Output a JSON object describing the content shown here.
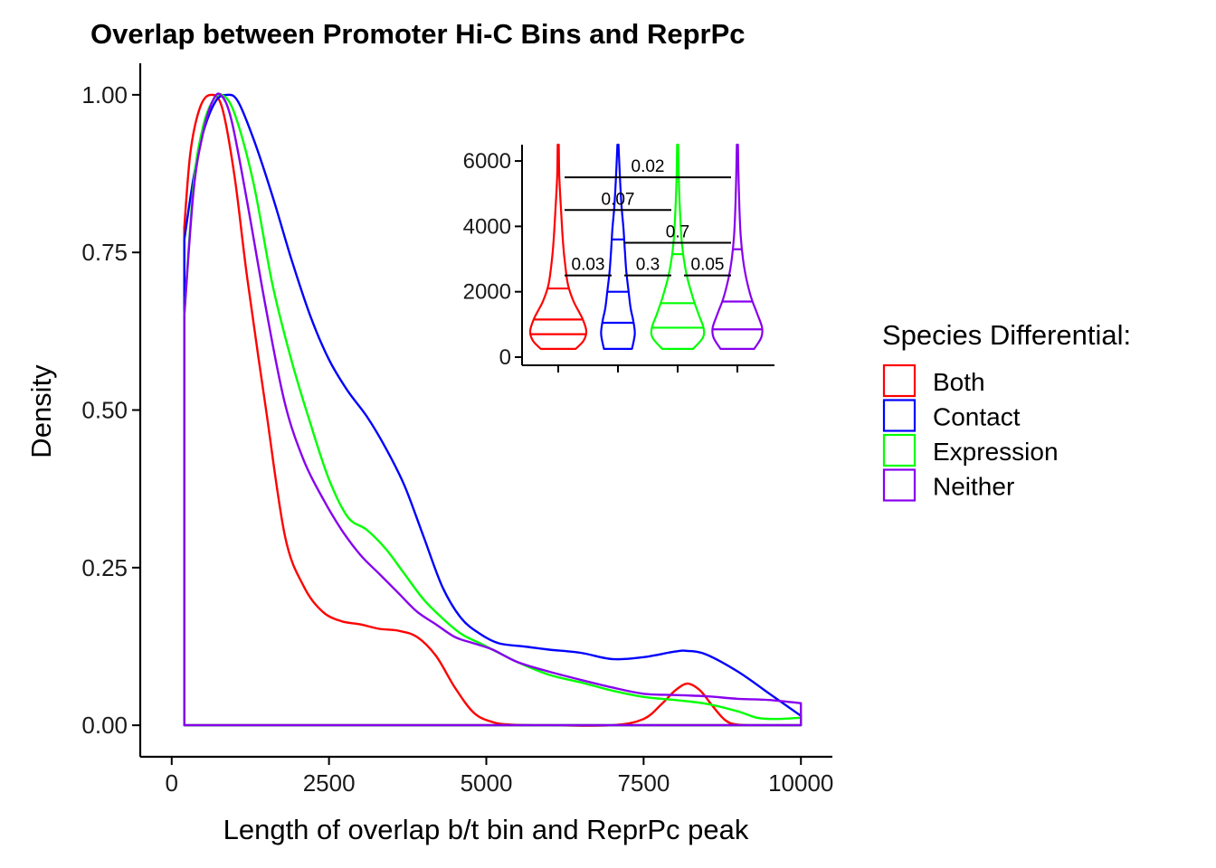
{
  "chart_data": [
    {
      "type": "density",
      "title": "Overlap between Promoter Hi-C Bins and ReprPc",
      "xlabel": "Length of overlap b/t bin and ReprPc peak",
      "ylabel": "Density",
      "xlim": [
        -500,
        10500
      ],
      "ylim": [
        -0.05,
        1.05
      ],
      "x_ticks": [
        "0",
        "2500",
        "5000",
        "7500",
        "10000"
      ],
      "y_ticks": [
        "0.00",
        "0.25",
        "0.50",
        "0.75",
        "1.00"
      ],
      "legend": {
        "title": "Species Differential:",
        "position": "right",
        "items": [
          "Both",
          "Contact",
          "Expression",
          "Neither"
        ]
      },
      "series": [
        {
          "name": "Both",
          "color": "#FF0000",
          "x": [
            200,
            300,
            450,
            620,
            800,
            1000,
            1200,
            1500,
            1800,
            2100,
            2400,
            2700,
            3000,
            3300,
            3600,
            3900,
            4200,
            4500,
            4800,
            5100,
            5400,
            6000,
            7000,
            7500,
            7800,
            8000,
            8200,
            8400,
            8600,
            8800,
            9000,
            9500,
            10000
          ],
          "y": [
            0.79,
            0.91,
            0.98,
            1.0,
            0.98,
            0.87,
            0.71,
            0.5,
            0.3,
            0.22,
            0.18,
            0.165,
            0.16,
            0.153,
            0.15,
            0.14,
            0.11,
            0.06,
            0.02,
            0.005,
            0.001,
            0.0,
            0.0,
            0.01,
            0.035,
            0.055,
            0.066,
            0.055,
            0.03,
            0.008,
            0.001,
            0.0,
            0.0
          ]
        },
        {
          "name": "Contact",
          "color": "#0000FF",
          "x": [
            200,
            350,
            500,
            700,
            880,
            1050,
            1300,
            1600,
            1900,
            2200,
            2500,
            2800,
            3100,
            3400,
            3700,
            4000,
            4300,
            4600,
            4900,
            5200,
            5600,
            6000,
            6500,
            7000,
            7500,
            8000,
            8200,
            8500,
            9000,
            9500,
            10000
          ],
          "y": [
            0.77,
            0.87,
            0.94,
            0.99,
            1.0,
            0.99,
            0.93,
            0.84,
            0.74,
            0.65,
            0.58,
            0.53,
            0.49,
            0.44,
            0.38,
            0.3,
            0.22,
            0.17,
            0.145,
            0.13,
            0.125,
            0.12,
            0.115,
            0.105,
            0.108,
            0.117,
            0.118,
            0.112,
            0.085,
            0.05,
            0.015
          ]
        },
        {
          "name": "Expression",
          "color": "#00FF00",
          "x": [
            200,
            350,
            500,
            650,
            800,
            1000,
            1300,
            1600,
            1900,
            2200,
            2500,
            2800,
            3100,
            3400,
            3700,
            4000,
            4300,
            4600,
            4900,
            5200,
            5500,
            6000,
            6500,
            7000,
            7500,
            8000,
            8500,
            9000,
            9300,
            9600,
            10000
          ],
          "y": [
            0.65,
            0.86,
            0.95,
            0.99,
            1.0,
            0.97,
            0.86,
            0.7,
            0.58,
            0.48,
            0.39,
            0.33,
            0.31,
            0.28,
            0.24,
            0.2,
            0.17,
            0.145,
            0.13,
            0.115,
            0.1,
            0.08,
            0.068,
            0.055,
            0.045,
            0.04,
            0.034,
            0.022,
            0.012,
            0.01,
            0.012
          ]
        },
        {
          "name": "Neither",
          "color": "#8800EE",
          "x": [
            200,
            350,
            500,
            650,
            780,
            950,
            1200,
            1500,
            1800,
            2100,
            2400,
            2700,
            3000,
            3300,
            3600,
            3900,
            4200,
            4500,
            4800,
            5100,
            5500,
            6000,
            6500,
            7000,
            7500,
            8000,
            8500,
            9000,
            9500,
            10000
          ],
          "y": [
            0.65,
            0.85,
            0.94,
            0.99,
            1.0,
            0.96,
            0.83,
            0.66,
            0.51,
            0.42,
            0.36,
            0.31,
            0.27,
            0.24,
            0.21,
            0.18,
            0.16,
            0.14,
            0.13,
            0.12,
            0.1,
            0.085,
            0.072,
            0.06,
            0.05,
            0.048,
            0.046,
            0.042,
            0.04,
            0.035
          ]
        }
      ]
    },
    {
      "type": "violin",
      "ylim": [
        -250,
        6500
      ],
      "y_ticks": [
        "0",
        "2000",
        "4000",
        "6000"
      ],
      "groups": [
        {
          "name": "Both",
          "color": "#FF0000",
          "min": 250,
          "max": 6500,
          "quantiles": [
            700,
            1150,
            2100
          ],
          "width_profile": [
            [
              250,
              0.62
            ],
            [
              500,
              0.9
            ],
            [
              800,
              1.0
            ],
            [
              1200,
              0.85
            ],
            [
              1700,
              0.55
            ],
            [
              2200,
              0.35
            ],
            [
              2800,
              0.25
            ],
            [
              3500,
              0.17
            ],
            [
              4500,
              0.1
            ],
            [
              5500,
              0.04
            ],
            [
              6500,
              0.02
            ]
          ]
        },
        {
          "name": "Contact",
          "color": "#0000FF",
          "min": 250,
          "max": 6500,
          "quantiles": [
            1050,
            2000,
            3600
          ],
          "width_profile": [
            [
              250,
              0.5
            ],
            [
              700,
              0.6
            ],
            [
              1100,
              0.55
            ],
            [
              1500,
              0.45
            ],
            [
              2000,
              0.38
            ],
            [
              2600,
              0.3
            ],
            [
              3200,
              0.25
            ],
            [
              3900,
              0.2
            ],
            [
              4600,
              0.13
            ],
            [
              5500,
              0.07
            ],
            [
              6500,
              0.02
            ]
          ]
        },
        {
          "name": "Expression",
          "color": "#00FF00",
          "min": 250,
          "max": 6500,
          "quantiles": [
            900,
            1650,
            3150
          ],
          "width_profile": [
            [
              250,
              0.55
            ],
            [
              600,
              0.9
            ],
            [
              900,
              0.92
            ],
            [
              1300,
              0.75
            ],
            [
              1800,
              0.55
            ],
            [
              2400,
              0.35
            ],
            [
              3000,
              0.22
            ],
            [
              3600,
              0.14
            ],
            [
              4500,
              0.08
            ],
            [
              5500,
              0.04
            ],
            [
              6500,
              0.02
            ]
          ]
        },
        {
          "name": "Neither",
          "color": "#8800EE",
          "min": 250,
          "max": 6500,
          "quantiles": [
            850,
            1700,
            3300
          ],
          "width_profile": [
            [
              250,
              0.6
            ],
            [
              600,
              0.85
            ],
            [
              900,
              0.88
            ],
            [
              1300,
              0.72
            ],
            [
              1800,
              0.5
            ],
            [
              2400,
              0.32
            ],
            [
              3000,
              0.2
            ],
            [
              3700,
              0.12
            ],
            [
              4600,
              0.07
            ],
            [
              5600,
              0.04
            ],
            [
              6500,
              0.02
            ]
          ]
        }
      ],
      "comparisons": [
        {
          "groups": [
            1,
            4
          ],
          "y": 5500,
          "label": "0.02"
        },
        {
          "groups": [
            1,
            3
          ],
          "y": 4500,
          "label": "0.07"
        },
        {
          "groups": [
            2,
            4
          ],
          "y": 3500,
          "label": "0.7"
        },
        {
          "groups": [
            1,
            2
          ],
          "y": 2500,
          "label": "0.03"
        },
        {
          "groups": [
            2,
            3
          ],
          "y": 2500,
          "label": "0.3"
        },
        {
          "groups": [
            3,
            4
          ],
          "y": 2500,
          "label": "0.05"
        }
      ]
    }
  ]
}
